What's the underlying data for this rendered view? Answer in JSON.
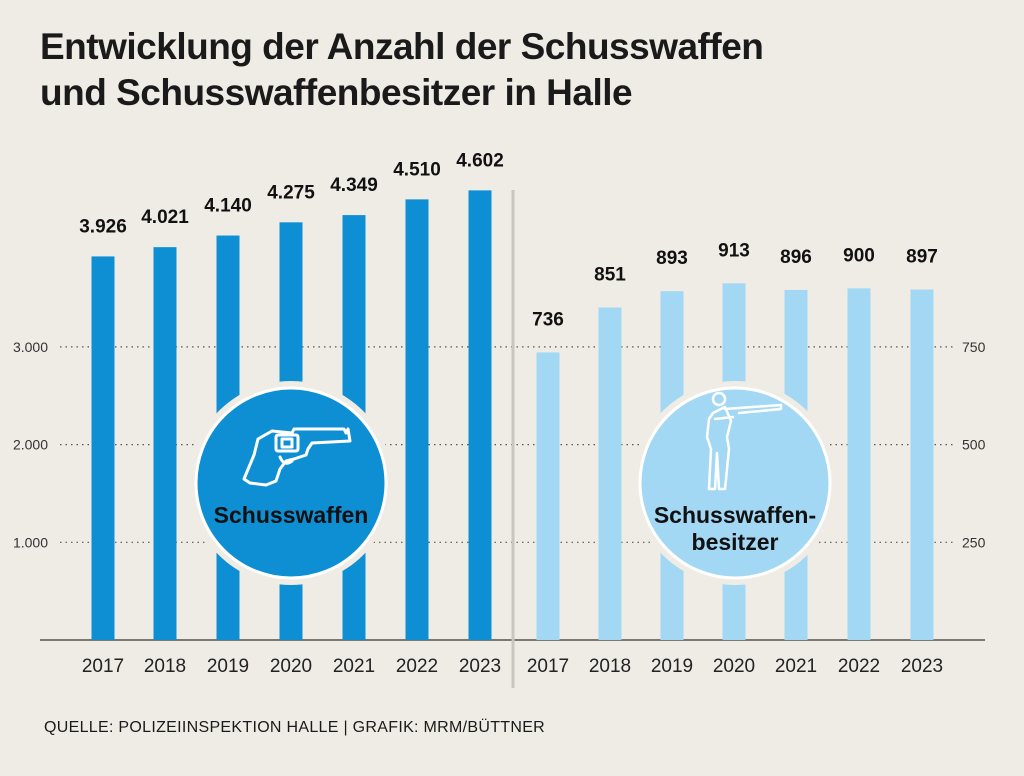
{
  "title": {
    "line1": "Entwicklung der Anzahl der Schusswaffen",
    "line2": "und Schusswaffenbesitzer in Halle"
  },
  "footer": "QUELLE: POLIZEIINSPEKTION HALLE | GRAFIK: MRM/BÜTTNER",
  "colors": {
    "background": "#efece6",
    "weapons": "#0f8fd3",
    "owners": "#a3d8f4",
    "divider": "#c9c6be"
  },
  "chart_data": [
    {
      "type": "bar",
      "name": "weapons",
      "badge_label": "Schusswaffen",
      "icon": "revolver-icon",
      "categories": [
        "2017",
        "2018",
        "2019",
        "2020",
        "2021",
        "2022",
        "2023"
      ],
      "values": [
        3926,
        4021,
        4140,
        4275,
        4349,
        4510,
        4602
      ],
      "value_labels": [
        "3.926",
        "4.021",
        "4.140",
        "4.275",
        "4.349",
        "4.510",
        "4.602"
      ],
      "axis": "left",
      "yticks": [
        1000,
        2000,
        3000
      ],
      "ytick_labels": [
        "1.000",
        "2.000",
        "3.000"
      ],
      "ylim": [
        0,
        4602
      ]
    },
    {
      "type": "bar",
      "name": "owners",
      "badge_label_lines": [
        "Schusswaffen-",
        "besitzer"
      ],
      "icon": "rifleman-icon",
      "categories": [
        "2017",
        "2018",
        "2019",
        "2020",
        "2021",
        "2022",
        "2023"
      ],
      "values": [
        736,
        851,
        893,
        913,
        896,
        900,
        897
      ],
      "value_labels": [
        "736",
        "851",
        "893",
        "913",
        "896",
        "900",
        "897"
      ],
      "axis": "right",
      "yticks": [
        250,
        500,
        750
      ],
      "ytick_labels": [
        "250",
        "500",
        "750"
      ],
      "ylim": [
        0,
        1150
      ]
    }
  ]
}
